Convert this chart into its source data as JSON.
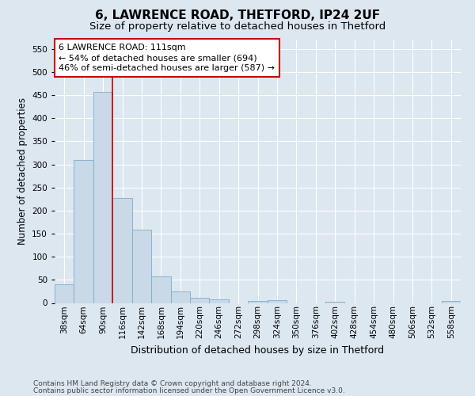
{
  "title1": "6, LAWRENCE ROAD, THETFORD, IP24 2UF",
  "title2": "Size of property relative to detached houses in Thetford",
  "xlabel": "Distribution of detached houses by size in Thetford",
  "ylabel": "Number of detached properties",
  "categories": [
    "38sqm",
    "64sqm",
    "90sqm",
    "116sqm",
    "142sqm",
    "168sqm",
    "194sqm",
    "220sqm",
    "246sqm",
    "272sqm",
    "298sqm",
    "324sqm",
    "350sqm",
    "376sqm",
    "402sqm",
    "428sqm",
    "454sqm",
    "480sqm",
    "506sqm",
    "532sqm",
    "558sqm"
  ],
  "values": [
    40,
    310,
    457,
    227,
    158,
    57,
    25,
    11,
    8,
    0,
    4,
    6,
    0,
    0,
    2,
    0,
    0,
    0,
    0,
    0,
    4
  ],
  "bar_color": "#c9d9e8",
  "bar_edge_color": "#7aadcc",
  "vline_color": "#cc0000",
  "annotation_line1": "6 LAWRENCE ROAD: 111sqm",
  "annotation_line2": "← 54% of detached houses are smaller (694)",
  "annotation_line3": "46% of semi-detached houses are larger (587) →",
  "annotation_box_color": "#ffffff",
  "annotation_box_edge": "#cc0000",
  "ylim": [
    0,
    570
  ],
  "yticks": [
    0,
    50,
    100,
    150,
    200,
    250,
    300,
    350,
    400,
    450,
    500,
    550
  ],
  "bg_color": "#dce7f0",
  "footer_line1": "Contains HM Land Registry data © Crown copyright and database right 2024.",
  "footer_line2": "Contains public sector information licensed under the Open Government Licence v3.0.",
  "title1_fontsize": 11,
  "title2_fontsize": 9.5,
  "xlabel_fontsize": 9,
  "ylabel_fontsize": 8.5,
  "tick_fontsize": 7.5,
  "annot_fontsize": 8,
  "footer_fontsize": 6.5
}
